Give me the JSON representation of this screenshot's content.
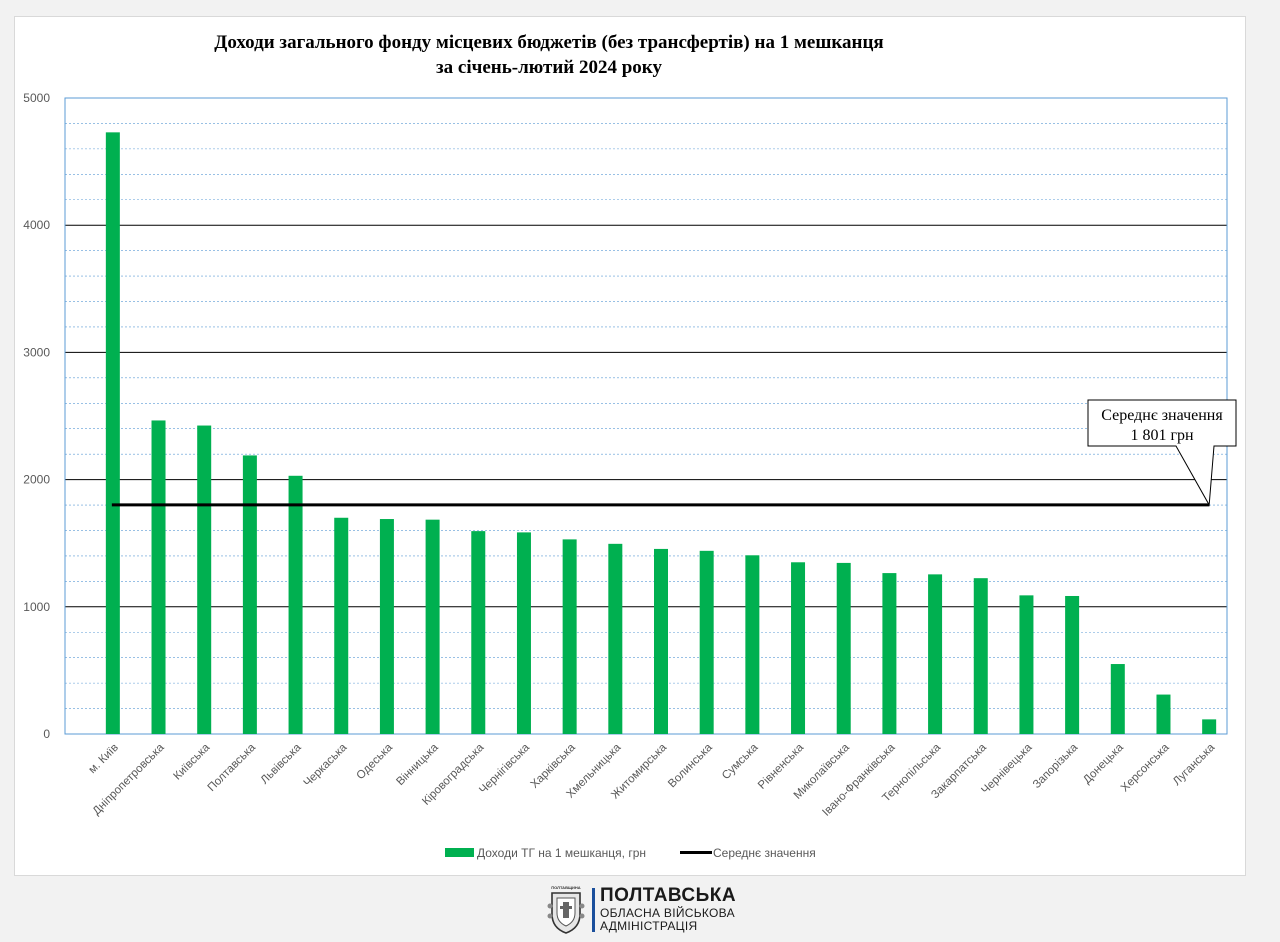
{
  "colors": {
    "bar": "#00b050",
    "mean_line": "#000000",
    "plot_border": "#5b9bd5",
    "minor_grid": "#5b9bd5",
    "major_grid": "#000000"
  },
  "chart_data": {
    "type": "bar",
    "title": "Доходи загального фонду місцевих бюджетів (без трансфертів) на 1 мешканця",
    "subtitle": "за січень-лютий 2024 року",
    "xlabel": "",
    "ylabel": "",
    "ylim": [
      0,
      5000
    ],
    "yticks": [
      "0",
      "1000",
      "2000",
      "3000",
      "4000",
      "5000"
    ],
    "grid": true,
    "legend_position": "bottom",
    "categories": [
      "м. Київ",
      "Дніпропетровська",
      "Київська",
      "Полтавська",
      "Львівська",
      "Черкаська",
      "Одеська",
      "Вінницька",
      "Кіровоградська",
      "Чернігівська",
      "Харківська",
      "Хмельницька",
      "Житомирська",
      "Волинська",
      "Сумська",
      "Рівненська",
      "Миколаївська",
      "Івано-Франківська",
      "Тернопільська",
      "Закарпатська",
      "Чернівецька",
      "Запорізька",
      "Донецька",
      "Херсонська",
      "Луганська"
    ],
    "series": [
      {
        "name": "Доходи ТГ на 1 мешканця, грн",
        "type": "bar",
        "values": [
          4730,
          2465,
          2425,
          2190,
          2030,
          1700,
          1690,
          1685,
          1595,
          1585,
          1530,
          1495,
          1455,
          1440,
          1405,
          1350,
          1345,
          1265,
          1255,
          1225,
          1090,
          1085,
          550,
          310,
          115
        ]
      },
      {
        "name": "Середнє значення",
        "type": "line",
        "value": 1801
      }
    ],
    "annotation": {
      "line1": "Середнє значення",
      "line2": "1 801 грн"
    }
  },
  "logo": {
    "name": "ПОЛТАВСЬКА",
    "line2": "ОБЛАСНА ВІЙСЬКОВА",
    "line3": "АДМІНІСТРАЦІЯ",
    "emblem_label": "ПОЛТАВЩИНА",
    "emblem_icon": "poltava-coat-of-arms-icon"
  }
}
